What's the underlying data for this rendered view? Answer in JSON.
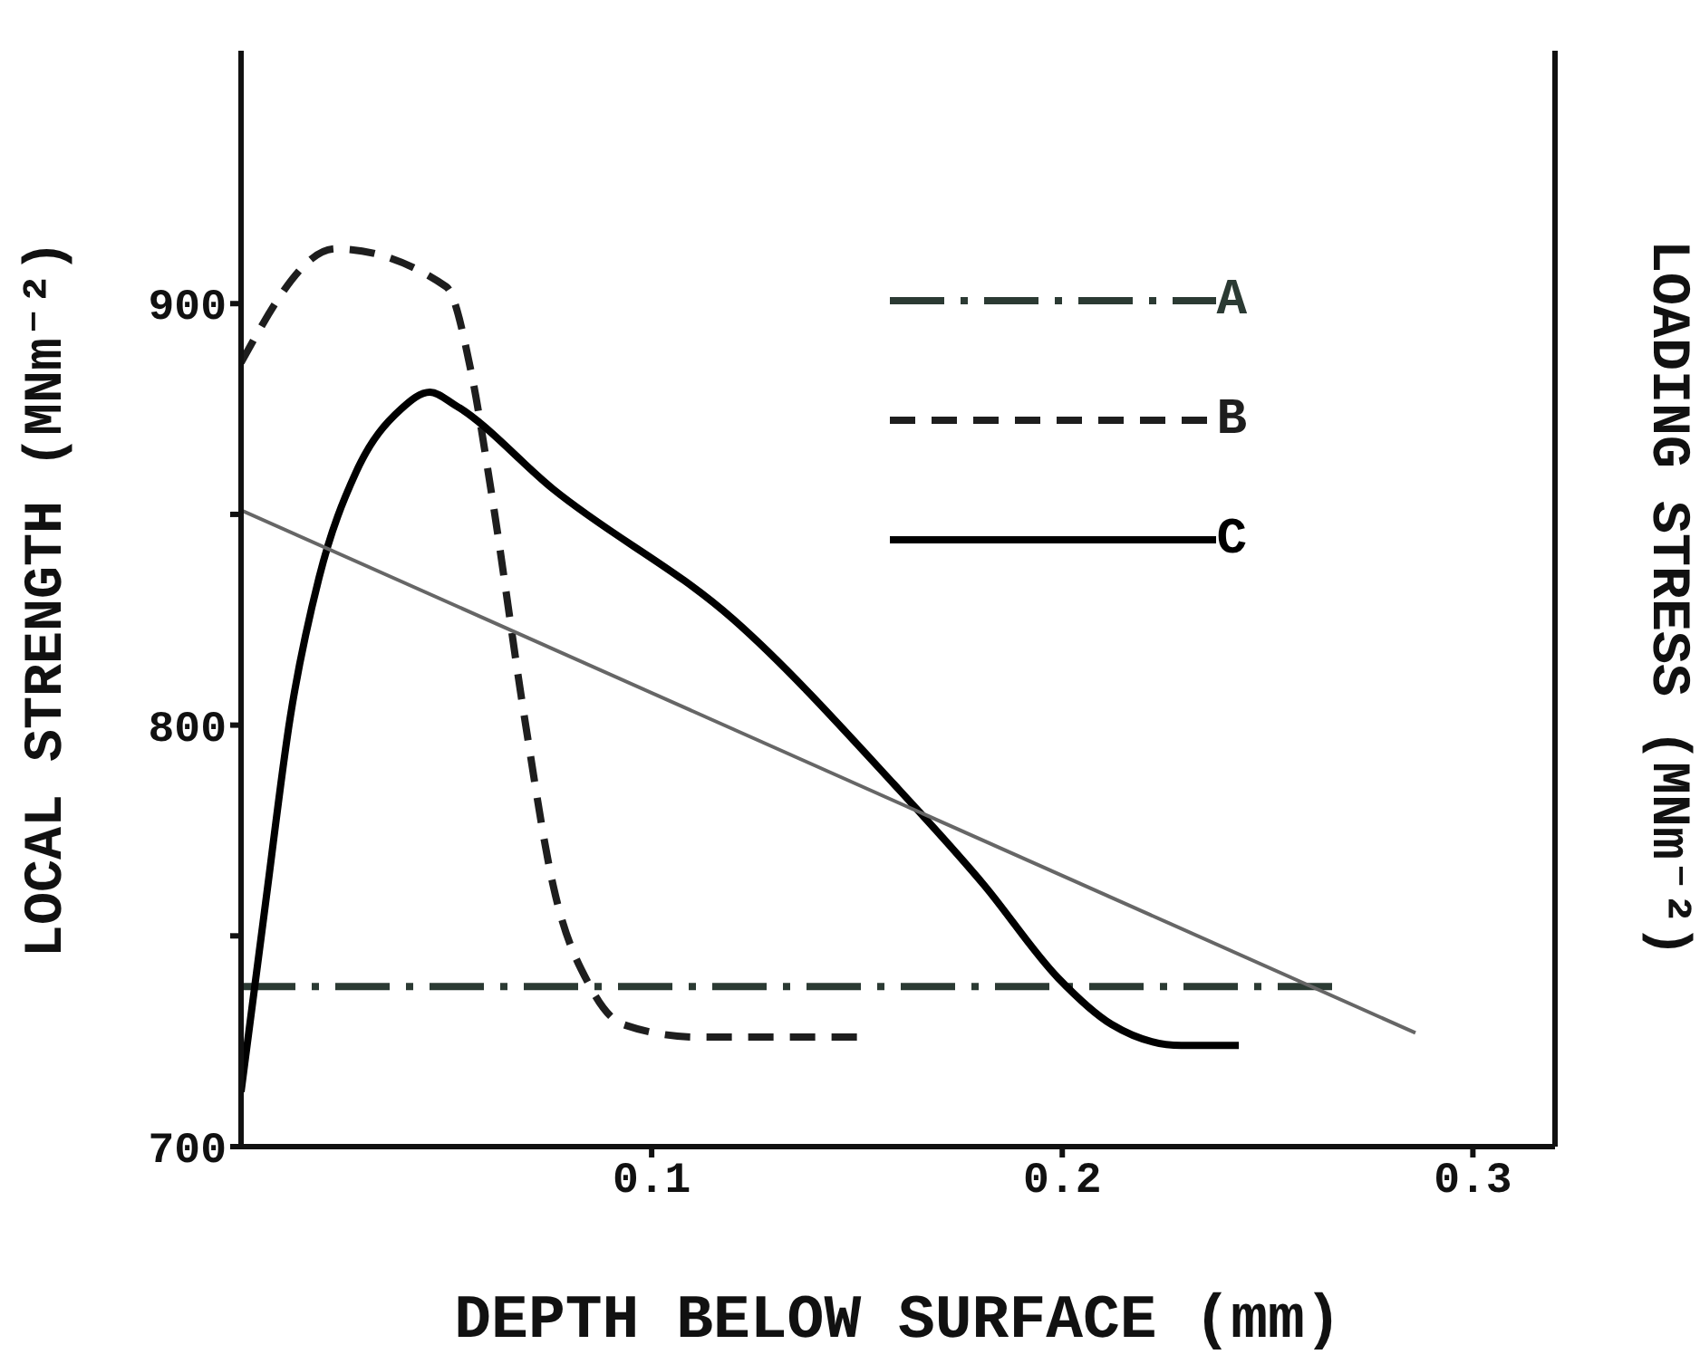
{
  "chart_data": {
    "type": "line",
    "xlabel": "DEPTH BELOW SURFACE (mm)",
    "ylabel": "LOCAL STRENGTH (MNm⁻²)",
    "y2label": "LOADING STRESS (MNm⁻²)",
    "xlim": [
      0,
      0.32
    ],
    "xticks": [
      0.1,
      0.2,
      0.3
    ],
    "ylim": [
      700,
      960
    ],
    "yticks": [
      700,
      {
        "value": 750,
        "label": null
      },
      800,
      {
        "value": 850,
        "label": null
      },
      900
    ],
    "grid": false,
    "legend": "top right",
    "marker": "none",
    "series": [
      {
        "name": "A",
        "color": "#2b3a33",
        "line_style": "dashdot",
        "x": [
          0,
          0.269
        ],
        "values": [
          738,
          738
        ]
      },
      {
        "name": "B",
        "color": "#1e1e1e",
        "line_style": "dashed",
        "x": [
          0,
          0.023,
          0.05,
          0.056,
          0.061,
          0.069,
          0.076,
          0.085,
          0.093,
          0.111,
          0.15
        ],
        "values": [
          886,
          913,
          904,
          884,
          855,
          802,
          762,
          738,
          729,
          726,
          726
        ]
      },
      {
        "name": "C",
        "color": "#000000",
        "line_style": "solid",
        "x": [
          0,
          0.006,
          0.012,
          0.019,
          0.028,
          0.039,
          0.046,
          0.052,
          0.076,
          0.12,
          0.159,
          0.181,
          0.199,
          0.212,
          0.229,
          0.243
        ],
        "values": [
          713,
          758,
          802,
          835,
          860,
          875,
          879,
          876,
          856,
          825,
          786,
          762,
          740,
          729,
          724,
          724
        ]
      },
      {
        "color": "#666666",
        "line_style": "solid",
        "x": [
          0,
          0.286
        ],
        "values": [
          851,
          727
        ]
      }
    ]
  }
}
